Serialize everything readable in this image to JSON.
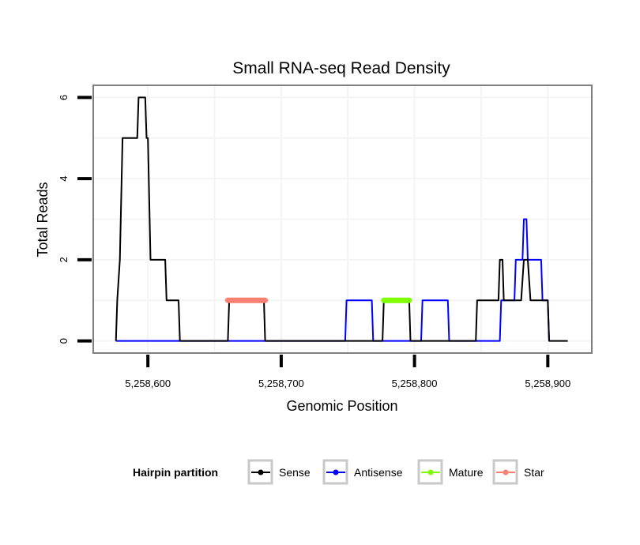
{
  "chart_data": {
    "type": "line",
    "title": "Small RNA-seq Read Density",
    "xlabel": "Genomic Position",
    "ylabel": "Total Reads",
    "xlim": [
      5258559,
      5258933
    ],
    "ylim": [
      -0.3,
      6.3
    ],
    "x_ticks": [
      5258600,
      5258700,
      5258800,
      5258900
    ],
    "x_tick_labels": [
      "5,258,600",
      "5,258,700",
      "5,258,800",
      "5,258,900"
    ],
    "y_ticks": [
      0,
      2,
      4,
      6
    ],
    "y_tick_labels": [
      "0",
      "2",
      "4",
      "6"
    ],
    "grid": true,
    "legend": {
      "title": "Hairpin partition",
      "placement": "bottom",
      "entries": [
        {
          "name": "Sense",
          "color": "#000000"
        },
        {
          "name": "Antisense",
          "color": "#0000FF"
        },
        {
          "name": "Mature",
          "color": "#7FFF00"
        },
        {
          "name": "Star",
          "color": "#FA8072"
        }
      ]
    },
    "series": [
      {
        "name": "Sense",
        "color": "#000000",
        "x": [
          5258576,
          5258577,
          5258579,
          5258581,
          5258592,
          5258593,
          5258598,
          5258599,
          5258600,
          5258602,
          5258613,
          5258614,
          5258623,
          5258624,
          5258660,
          5258661,
          5258687,
          5258688,
          5258776,
          5258777,
          5258796,
          5258797,
          5258846,
          5258847,
          5258863,
          5258864,
          5258866,
          5258867,
          5258880,
          5258882,
          5258885,
          5258887,
          5258900,
          5258901,
          5258915
        ],
        "y": [
          0,
          1,
          2,
          5,
          5,
          6,
          6,
          5,
          5,
          2,
          2,
          1,
          1,
          0,
          0,
          1,
          1,
          0,
          0,
          1,
          1,
          0,
          0,
          1,
          1,
          2,
          2,
          1,
          1,
          2,
          2,
          1,
          1,
          0,
          0
        ]
      },
      {
        "name": "Antisense",
        "color": "#0000FF",
        "x": [
          5258576,
          5258748,
          5258749,
          5258768,
          5258769,
          5258805,
          5258806,
          5258825,
          5258826,
          5258864,
          5258865,
          5258875,
          5258876,
          5258881,
          5258882,
          5258884,
          5258885,
          5258895,
          5258896,
          5258900,
          5258901
        ],
        "y": [
          0,
          0,
          1,
          1,
          0,
          0,
          1,
          1,
          0,
          0,
          1,
          1,
          2,
          2,
          3,
          3,
          2,
          2,
          1,
          1,
          0
        ]
      },
      {
        "name": "Star",
        "color": "#FA8072",
        "x": [
          5258660,
          5258688
        ],
        "y": [
          1,
          1
        ]
      },
      {
        "name": "Mature",
        "color": "#7FFF00",
        "x": [
          5258777,
          5258796
        ],
        "y": [
          1,
          1
        ]
      }
    ]
  }
}
